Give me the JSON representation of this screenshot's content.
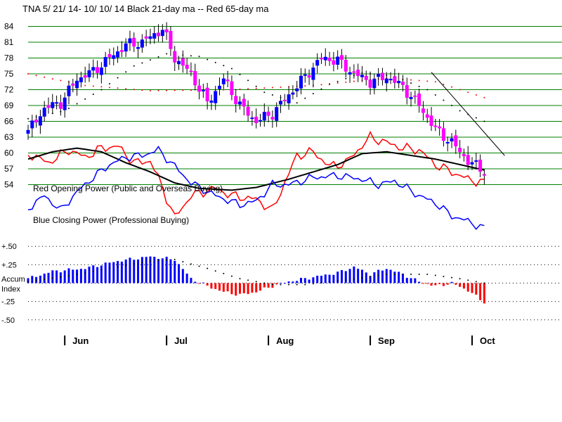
{
  "chart_data": {
    "type": "candlestick",
    "title": "TNA   5/ 21/ 14- 10/ 10/ 14    Black 21-day ma --  Red 65-day ma",
    "price_ticks": [
      "84",
      "81",
      "78",
      "75",
      "72",
      "69",
      "66",
      "63",
      "60",
      "57",
      "54"
    ],
    "price_tick_values": [
      84,
      81,
      78,
      75,
      72,
      69,
      66,
      63,
      60,
      57,
      54
    ],
    "month_labels": [
      "Jun",
      "Jul",
      "Aug",
      "Sep",
      "Oct"
    ],
    "month_positions": [
      9,
      34,
      59,
      84,
      109
    ],
    "labels": {
      "red_opening_power": "Red Opening Power (Public and Overseas Buying)",
      "blue_closing_power": "Blue Closing Power (Professional Buying)"
    },
    "accum_ticks": [
      "+.50",
      "+.25",
      "Accum",
      "Index",
      "-.25",
      "-.50"
    ],
    "accum_tick_values": [
      0.5,
      0.25,
      0.0,
      0.0,
      -0.25,
      -0.5
    ],
    "ylim": [
      53,
      85
    ],
    "accum_ylim": [
      -0.55,
      0.55
    ],
    "n_days": 120,
    "colors": {
      "up": "#0000ff",
      "down": "#ff00ff",
      "red": "#ff0000",
      "black": "#000000",
      "grid": "#008000"
    },
    "candle_anchors": [
      [
        0,
        64.0
      ],
      [
        4,
        68.5
      ],
      [
        8,
        69.5
      ],
      [
        12,
        74.0
      ],
      [
        16,
        75.5
      ],
      [
        20,
        78.0
      ],
      [
        24,
        80.5
      ],
      [
        28,
        81.0
      ],
      [
        33,
        83.5
      ],
      [
        36,
        78.0
      ],
      [
        40,
        75.0
      ],
      [
        44,
        69.5
      ],
      [
        48,
        74.0
      ],
      [
        52,
        69.0
      ],
      [
        56,
        66.0
      ],
      [
        60,
        67.5
      ],
      [
        64,
        71.0
      ],
      [
        68,
        74.5
      ],
      [
        72,
        78.0
      ],
      [
        76,
        77.5
      ],
      [
        80,
        75.0
      ],
      [
        84,
        73.5
      ],
      [
        88,
        74.5
      ],
      [
        92,
        72.5
      ],
      [
        96,
        69.0
      ],
      [
        100,
        64.5
      ],
      [
        104,
        62.0
      ],
      [
        108,
        58.5
      ],
      [
        112,
        56.5
      ]
    ],
    "ma21_anchors": [
      [
        0,
        66.5
      ],
      [
        9,
        68
      ],
      [
        18,
        72
      ],
      [
        26,
        76.5
      ],
      [
        34,
        78.8
      ],
      [
        42,
        78.3
      ],
      [
        50,
        76
      ],
      [
        58,
        71.5
      ],
      [
        66,
        69.5
      ],
      [
        74,
        73
      ],
      [
        82,
        75.2
      ],
      [
        90,
        74.5
      ],
      [
        98,
        72
      ],
      [
        106,
        68
      ],
      [
        112,
        66
      ]
    ],
    "ma65_anchors": [
      [
        0,
        75
      ],
      [
        14,
        72.8
      ],
      [
        30,
        71.8
      ],
      [
        50,
        72
      ],
      [
        70,
        72.8
      ],
      [
        88,
        74.2
      ],
      [
        100,
        73.5
      ],
      [
        112,
        70.5
      ]
    ],
    "red_power_anchors": [
      [
        0,
        0.18
      ],
      [
        5,
        0.28
      ],
      [
        10,
        0.14
      ],
      [
        14,
        0.22
      ],
      [
        18,
        0.12
      ],
      [
        22,
        0.1
      ],
      [
        26,
        0.28
      ],
      [
        30,
        0.26
      ],
      [
        32,
        0.45
      ],
      [
        36,
        0.88
      ],
      [
        40,
        0.64
      ],
      [
        46,
        0.56
      ],
      [
        50,
        0.64
      ],
      [
        56,
        0.68
      ],
      [
        60,
        0.8
      ],
      [
        66,
        0.2
      ],
      [
        70,
        0.16
      ],
      [
        74,
        0.32
      ],
      [
        78,
        0.28
      ],
      [
        84,
        0.0
      ],
      [
        88,
        0.06
      ],
      [
        92,
        0.12
      ],
      [
        96,
        0.14
      ],
      [
        100,
        0.3
      ],
      [
        104,
        0.38
      ],
      [
        108,
        0.46
      ],
      [
        112,
        0.5
      ]
    ],
    "black_power_anchors": [
      [
        0,
        0.24
      ],
      [
        6,
        0.16
      ],
      [
        12,
        0.12
      ],
      [
        18,
        0.16
      ],
      [
        24,
        0.28
      ],
      [
        30,
        0.38
      ],
      [
        36,
        0.5
      ],
      [
        42,
        0.56
      ],
      [
        50,
        0.58
      ],
      [
        56,
        0.55
      ],
      [
        64,
        0.46
      ],
      [
        70,
        0.38
      ],
      [
        76,
        0.3
      ],
      [
        82,
        0.18
      ],
      [
        88,
        0.16
      ],
      [
        94,
        0.2
      ],
      [
        100,
        0.24
      ],
      [
        106,
        0.3
      ],
      [
        112,
        0.36
      ]
    ],
    "blue_power_anchors": [
      [
        0,
        0.78
      ],
      [
        4,
        0.64
      ],
      [
        8,
        0.8
      ],
      [
        12,
        0.6
      ],
      [
        16,
        0.44
      ],
      [
        20,
        0.3
      ],
      [
        24,
        0.22
      ],
      [
        28,
        0.2
      ],
      [
        32,
        0.14
      ],
      [
        36,
        0.32
      ],
      [
        40,
        0.5
      ],
      [
        46,
        0.64
      ],
      [
        52,
        0.74
      ],
      [
        56,
        0.7
      ],
      [
        60,
        0.52
      ],
      [
        64,
        0.52
      ],
      [
        70,
        0.44
      ],
      [
        76,
        0.42
      ],
      [
        82,
        0.46
      ],
      [
        86,
        0.52
      ],
      [
        90,
        0.48
      ],
      [
        96,
        0.64
      ],
      [
        100,
        0.72
      ],
      [
        104,
        0.86
      ],
      [
        108,
        0.92
      ],
      [
        112,
        1.0
      ]
    ],
    "accum_anchors": [
      [
        0,
        0.06
      ],
      [
        6,
        0.16
      ],
      [
        14,
        0.2
      ],
      [
        22,
        0.3
      ],
      [
        30,
        0.36
      ],
      [
        36,
        0.32
      ],
      [
        40,
        0.06
      ],
      [
        44,
        -0.04
      ],
      [
        48,
        -0.12
      ],
      [
        52,
        -0.16
      ],
      [
        56,
        -0.12
      ],
      [
        60,
        -0.04
      ],
      [
        64,
        0.02
      ],
      [
        70,
        0.08
      ],
      [
        76,
        0.14
      ],
      [
        80,
        0.22
      ],
      [
        84,
        0.12
      ],
      [
        88,
        0.2
      ],
      [
        92,
        0.12
      ],
      [
        96,
        0.02
      ],
      [
        100,
        -0.04
      ],
      [
        104,
        0.0
      ],
      [
        108,
        -0.1
      ],
      [
        112,
        -0.26
      ]
    ],
    "accum_ma_anchors": [
      [
        0,
        0.02
      ],
      [
        10,
        0.1
      ],
      [
        20,
        0.2
      ],
      [
        30,
        0.3
      ],
      [
        36,
        0.32
      ],
      [
        44,
        0.2
      ],
      [
        52,
        0.06
      ],
      [
        60,
        -0.02
      ],
      [
        68,
        -0.02
      ],
      [
        78,
        0.04
      ],
      [
        88,
        0.12
      ],
      [
        98,
        0.12
      ],
      [
        106,
        0.06
      ],
      [
        112,
        0.0
      ]
    ]
  }
}
